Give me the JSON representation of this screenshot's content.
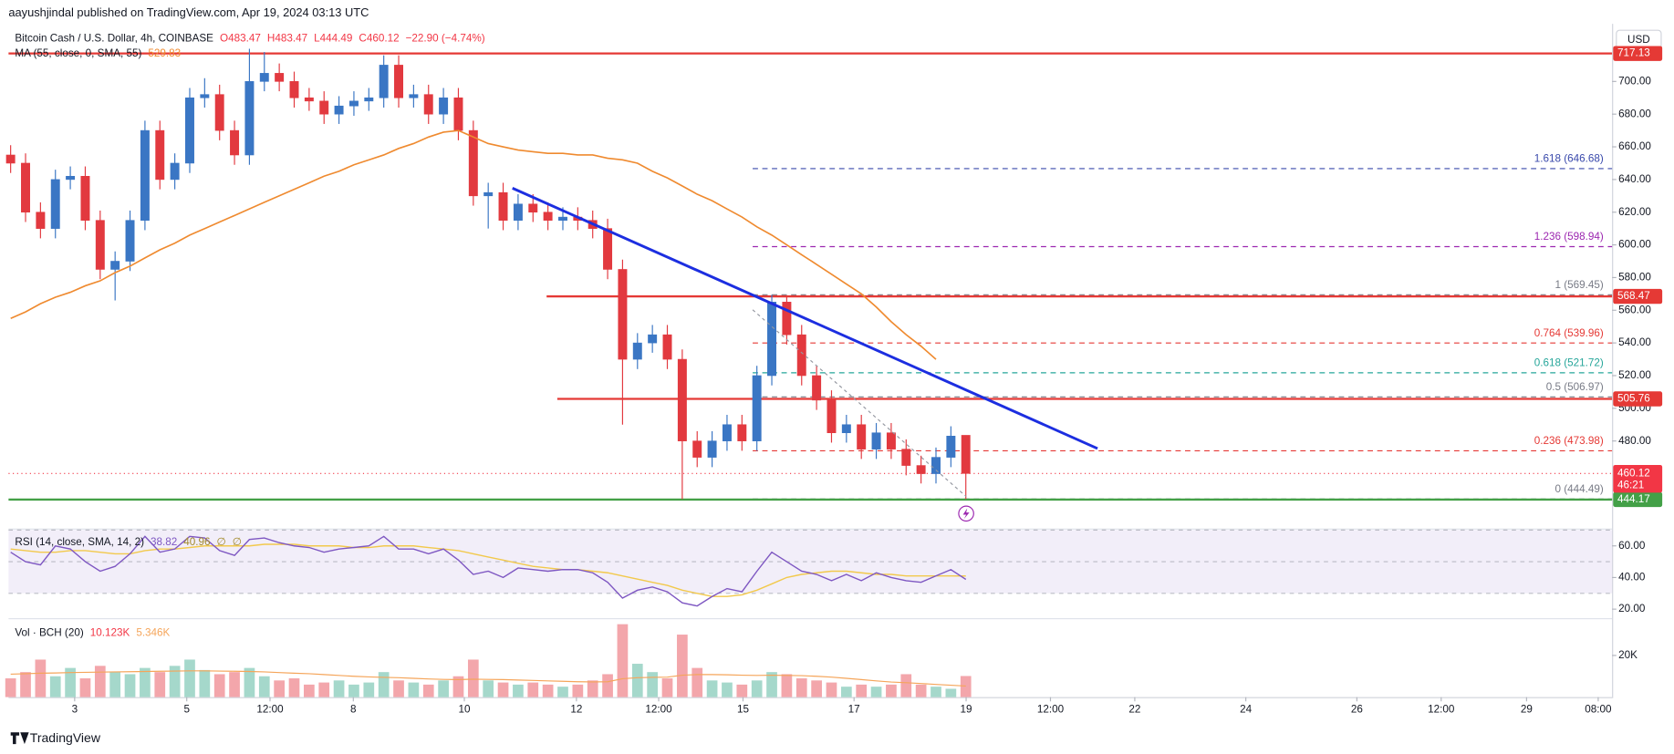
{
  "header": {
    "publisher": "aayushjindal published on TradingView.com, Apr 19, 2024 03:13 UTC",
    "footer": "TradingView"
  },
  "chart_data": {
    "type": "candlestick",
    "title": "Bitcoin Cash / U.S. Dollar, 4h, COINBASE",
    "ohlc_text": [
      "O483.47",
      "H483.47",
      "L444.49",
      "C460.12",
      "−22.90 (−4.74%)"
    ],
    "currency": "USD",
    "up_color": "#3a76c4",
    "down_color": "#e2393f",
    "open": [
      655,
      650,
      620,
      610,
      640,
      642,
      615,
      585,
      590,
      615,
      670,
      640,
      650,
      690,
      692,
      670,
      655,
      700,
      705,
      700,
      690,
      688,
      680,
      685,
      688,
      690,
      710,
      690,
      692,
      680,
      690,
      670,
      630,
      632,
      615,
      625,
      620,
      615,
      617,
      615,
      610,
      585,
      530,
      540,
      545,
      530,
      480,
      470,
      480,
      490,
      480,
      520,
      565,
      545,
      520,
      505,
      485,
      490,
      475,
      485,
      475,
      465,
      460,
      470,
      483.47
    ],
    "high": [
      661,
      656,
      626,
      646,
      648,
      648,
      621,
      596,
      621,
      676,
      676,
      656,
      696,
      702,
      698,
      676,
      720,
      718,
      711,
      706,
      696,
      694,
      691,
      694,
      696,
      716,
      716,
      698,
      698,
      696,
      696,
      676,
      638,
      638,
      631,
      631,
      626,
      623,
      623,
      621,
      616,
      591,
      546,
      551,
      551,
      536,
      486,
      486,
      496,
      496,
      526,
      569.45,
      568,
      551,
      526,
      511,
      496,
      496,
      491,
      491,
      481,
      471,
      476,
      489,
      483.47
    ],
    "low": [
      644,
      614,
      604,
      604,
      634,
      609,
      579,
      566,
      584,
      609,
      634,
      634,
      644,
      684,
      664,
      649,
      649,
      694,
      694,
      684,
      682,
      674,
      674,
      679,
      682,
      684,
      684,
      684,
      674,
      674,
      664,
      624,
      610,
      609,
      609,
      614,
      609,
      609,
      609,
      604,
      579,
      490,
      524,
      534,
      524,
      444.49,
      464,
      464,
      474,
      474,
      474,
      514,
      539,
      514,
      499,
      479,
      479,
      469,
      469,
      469,
      459,
      454,
      454,
      464,
      444.49
    ],
    "close": [
      650,
      620,
      610,
      640,
      642,
      615,
      585,
      590,
      615,
      670,
      640,
      650,
      690,
      692,
      670,
      655,
      700,
      705,
      700,
      690,
      688,
      680,
      685,
      688,
      690,
      710,
      690,
      692,
      680,
      690,
      670,
      630,
      632,
      615,
      625,
      620,
      615,
      617,
      615,
      610,
      585,
      530,
      540,
      545,
      530,
      480,
      470,
      480,
      490,
      480,
      520,
      565,
      545,
      520,
      505,
      485,
      490,
      475,
      485,
      475,
      465,
      460,
      470,
      483,
      460.12
    ],
    "xlim": [
      -0.14,
      107.3
    ],
    "xticks": [
      {
        "value": 4.29,
        "label": "3"
      },
      {
        "value": 11.8,
        "label": "5"
      },
      {
        "value": 17.38,
        "label": "12:00"
      },
      {
        "value": 22.96,
        "label": "8"
      },
      {
        "value": 30.4,
        "label": "10"
      },
      {
        "value": 37.91,
        "label": "12"
      },
      {
        "value": 43.42,
        "label": "12:00"
      },
      {
        "value": 49.07,
        "label": "15"
      },
      {
        "value": 56.51,
        "label": "17"
      },
      {
        "value": 64.02,
        "label": "19"
      },
      {
        "value": 69.67,
        "label": "12:00"
      },
      {
        "value": 75.32,
        "label": "22"
      },
      {
        "value": 82.76,
        "label": "24"
      },
      {
        "value": 90.2,
        "label": "26"
      },
      {
        "value": 95.85,
        "label": "12:00"
      },
      {
        "value": 101.57,
        "label": "29"
      },
      {
        "value": 106.37,
        "label": "08:00"
      }
    ],
    "ylim": [
      428.4,
      733.3
    ],
    "yticks": [
      {
        "value": 480,
        "label": "480.00"
      },
      {
        "value": 500,
        "label": "500.00"
      },
      {
        "value": 520,
        "label": "520.00"
      },
      {
        "value": 540,
        "label": "540.00"
      },
      {
        "value": 560,
        "label": "560.00"
      },
      {
        "value": 580,
        "label": "580.00"
      },
      {
        "value": 600,
        "label": "600.00"
      },
      {
        "value": 620,
        "label": "620.00"
      },
      {
        "value": 640,
        "label": "640.00"
      },
      {
        "value": 660,
        "label": "660.00"
      },
      {
        "value": 680,
        "label": "680.00"
      },
      {
        "value": 700,
        "label": "700.00"
      }
    ],
    "grid": false,
    "ma": {
      "name": "MA (55, close, 0, SMA, 55)",
      "last": "529.83",
      "color": "#ef8a2f",
      "values": [
        555,
        559,
        564,
        568,
        571,
        575,
        578,
        583,
        587,
        592,
        597,
        601,
        606,
        610,
        614,
        618,
        622,
        626,
        630,
        634,
        638,
        642,
        645,
        649,
        652,
        655,
        659,
        662,
        666,
        669,
        670,
        666,
        662,
        660,
        658,
        657,
        656,
        656,
        655,
        655,
        653,
        652,
        650,
        645,
        641,
        636,
        631,
        627,
        622,
        617,
        611,
        606,
        600,
        594,
        588,
        582,
        576,
        570,
        562,
        553,
        545,
        538,
        530,
        null,
        null
      ]
    },
    "levels": [
      {
        "value": 717.13,
        "label": "717.13",
        "color": "#e53935"
      },
      {
        "value": 568.47,
        "label": "568.47",
        "color": "#e53935"
      },
      {
        "value": 505.76,
        "label": "505.76",
        "color": "#e53935"
      },
      {
        "value": 444.17,
        "label": "444.17",
        "color": "#43a047"
      }
    ],
    "last_price": {
      "value": 460.12,
      "label": "460.12",
      "countdown": "46:21",
      "color": "#f23645"
    },
    "fib": [
      {
        "value": 646.68,
        "label": "1.618 (646.68)",
        "color": "#3949ab"
      },
      {
        "value": 598.94,
        "label": "1.236 (598.94)",
        "color": "#9c27b0"
      },
      {
        "value": 569.45,
        "label": "1 (569.45)",
        "color": "#787b86"
      },
      {
        "value": 539.96,
        "label": "0.764 (539.96)",
        "color": "#e53935"
      },
      {
        "value": 521.72,
        "label": "0.618 (521.72)",
        "color": "#26a69a"
      },
      {
        "value": 506.97,
        "label": "0.5 (506.97)",
        "color": "#787b86"
      },
      {
        "value": 473.98,
        "label": "0.236 (473.98)",
        "color": "#e53935"
      },
      {
        "value": 444.49,
        "label": "0 (444.49)",
        "color": "#787b86"
      }
    ],
    "rsi": {
      "name": "RSI (14, close, SMA, 14, 2)",
      "last": [
        "38.82",
        "40.96",
        "∅",
        "∅"
      ],
      "color": "#7e57c2",
      "ma_color": "#f2c94c",
      "ylim": [
        15,
        70.3
      ],
      "yticks": [
        {
          "value": 20,
          "label": "20.00"
        },
        {
          "value": 40,
          "label": "40.00"
        },
        {
          "value": 60,
          "label": "60.00"
        }
      ],
      "band": [
        30,
        50,
        70
      ],
      "values": [
        56,
        50,
        48,
        60,
        58,
        50,
        44,
        47,
        55,
        66,
        56,
        58,
        66,
        65,
        57,
        54,
        64,
        65,
        62,
        60,
        59,
        56,
        58,
        59,
        60,
        66,
        58,
        58,
        55,
        58,
        51,
        42,
        44,
        40,
        46,
        45,
        44,
        45,
        45,
        43,
        37,
        27,
        32,
        34,
        31,
        24,
        22,
        28,
        33,
        31,
        44,
        56,
        50,
        44,
        42,
        38,
        42,
        38,
        43,
        40,
        38,
        37,
        41,
        45,
        38.82
      ],
      "ma": [
        58,
        57,
        56,
        56,
        57,
        57,
        56,
        55,
        55,
        57,
        58,
        58,
        59,
        60,
        60,
        60,
        60,
        61,
        61,
        61,
        60,
        60,
        60,
        59,
        59,
        60,
        60,
        60,
        59,
        58,
        57,
        55,
        53,
        51,
        49,
        47,
        46,
        45,
        45,
        44,
        43,
        41,
        39,
        37,
        35,
        32,
        30,
        28,
        28,
        29,
        32,
        36,
        40,
        42,
        43,
        44,
        44,
        43,
        42,
        42,
        41,
        41,
        41,
        41,
        40.96
      ]
    },
    "volume": {
      "name": "Vol · BCH (20)",
      "last": [
        "10.123K",
        "5.346K"
      ],
      "up_color": "#a5d8cb",
      "down_color": "#f3a6ab",
      "ma_color": "#f5a55a",
      "ylim": [
        0,
        37400
      ],
      "yticks": [
        {
          "value": 20000,
          "label": "20K"
        }
      ],
      "values": [
        9000,
        12000,
        18000,
        10000,
        14000,
        9000,
        15000,
        12000,
        11000,
        14000,
        12000,
        15000,
        18000,
        13000,
        11000,
        12000,
        14000,
        10000,
        8000,
        9000,
        6000,
        7000,
        8000,
        6000,
        7000,
        12000,
        8000,
        7000,
        6000,
        8000,
        10000,
        18000,
        8000,
        7000,
        6000,
        7000,
        6000,
        5000,
        6000,
        8000,
        11000,
        35000,
        16000,
        12000,
        9000,
        30000,
        14000,
        8000,
        7000,
        6000,
        8000,
        12000,
        11000,
        9000,
        8000,
        7000,
        5000,
        6000,
        5000,
        6000,
        11000,
        6000,
        5000,
        4000,
        10123
      ],
      "ma": [
        11000,
        11200,
        11500,
        11600,
        11800,
        11900,
        12000,
        12100,
        12200,
        12300,
        12400,
        12500,
        12600,
        12600,
        12500,
        12400,
        12300,
        12100,
        11800,
        11500,
        11200,
        10800,
        10400,
        10000,
        9700,
        9500,
        9300,
        9000,
        8700,
        8500,
        8400,
        8600,
        8500,
        8400,
        8200,
        8000,
        7800,
        7600,
        7400,
        7300,
        7400,
        8800,
        9300,
        9500,
        9600,
        10500,
        10800,
        10800,
        10700,
        10500,
        10400,
        10500,
        10400,
        10300,
        10000,
        9600,
        9000,
        8400,
        7800,
        7200,
        6900,
        6500,
        6100,
        5700,
        5346
      ]
    }
  }
}
